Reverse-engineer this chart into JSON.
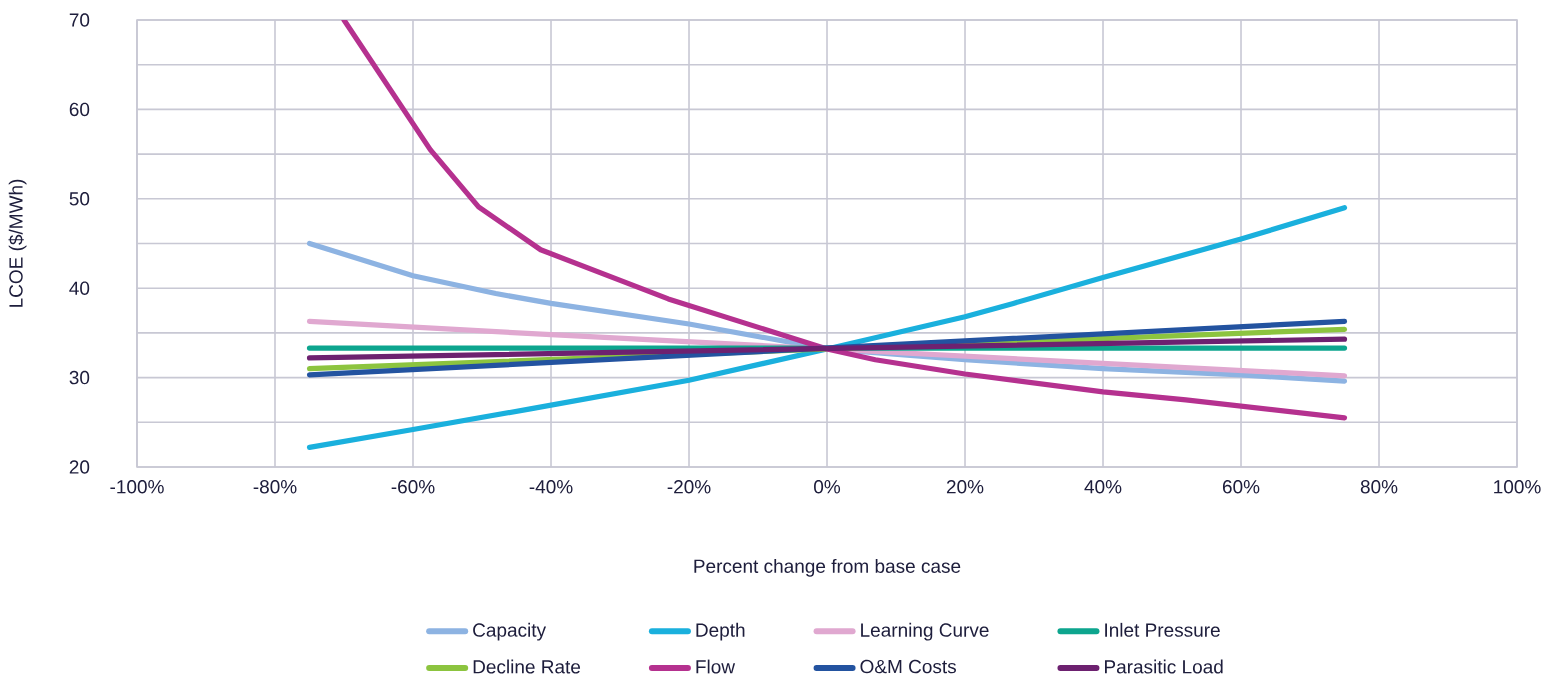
{
  "chart_data": {
    "type": "line",
    "xlabel": "Percent change from base case",
    "ylabel": "LCOE ($/MWh)",
    "xlim": [
      -100,
      100
    ],
    "ylim": [
      20,
      70
    ],
    "xticks": [
      {
        "value": -100,
        "label": "-100%"
      },
      {
        "value": -80,
        "label": "-80%"
      },
      {
        "value": -60,
        "label": "-60%"
      },
      {
        "value": -40,
        "label": "-40%"
      },
      {
        "value": -20,
        "label": "-20%"
      },
      {
        "value": 0,
        "label": "0%"
      },
      {
        "value": 20,
        "label": "20%"
      },
      {
        "value": 40,
        "label": "40%"
      },
      {
        "value": 60,
        "label": "60%"
      },
      {
        "value": 80,
        "label": "80%"
      },
      {
        "value": 100,
        "label": "100%"
      }
    ],
    "yticks": [
      20,
      {
        "value": 25,
        "label": null
      },
      30,
      {
        "value": 35,
        "label": null
      },
      40,
      {
        "value": 45,
        "label": null
      },
      50,
      {
        "value": 55,
        "label": null
      },
      60,
      {
        "value": 65,
        "label": null
      },
      70
    ],
    "grid": true,
    "legend": "bottom",
    "series": [
      {
        "name": "Capacity",
        "color": "#8db3e2",
        "x": [
          -75,
          -60,
          -48,
          -40,
          -20,
          0,
          20,
          40,
          60,
          75
        ],
        "values": [
          45.0,
          41.4,
          39.4,
          38.3,
          36.0,
          33.2,
          32.0,
          31.0,
          30.3,
          29.6
        ]
      },
      {
        "name": "Depth",
        "color": "#1ab0dd",
        "x": [
          -75,
          -60,
          -43,
          -20,
          0,
          20,
          27,
          40,
          60,
          75
        ],
        "values": [
          22.2,
          24.2,
          26.5,
          29.7,
          33.2,
          36.8,
          38.3,
          41.2,
          45.5,
          49.0
        ]
      },
      {
        "name": "Learning Curve",
        "color": "#e0a8d0",
        "x": [
          -75,
          -40,
          0,
          75
        ],
        "values": [
          36.3,
          34.8,
          33.2,
          30.2
        ]
      },
      {
        "name": "Inlet Pressure",
        "color": "#0da58e",
        "x": [
          -75,
          75
        ],
        "values": [
          33.3,
          33.3
        ]
      },
      {
        "name": "Decline Rate",
        "color": "#8cc43f",
        "x": [
          -75,
          75
        ],
        "values": [
          31.0,
          35.4
        ]
      },
      {
        "name": "Flow",
        "color": "#b5318f",
        "x": [
          -70,
          -57.5,
          -50.5,
          -41.5,
          -23,
          0,
          7,
          20,
          40,
          52,
          75
        ],
        "values": [
          70.0,
          55.5,
          49.1,
          44.3,
          38.8,
          33.2,
          32.0,
          30.4,
          28.4,
          27.5,
          25.5
        ]
      },
      {
        "name": "O&M Costs",
        "color": "#2353a0",
        "x": [
          -75,
          75
        ],
        "values": [
          30.3,
          36.3
        ]
      },
      {
        "name": "Parasitic Load",
        "color": "#6d2170",
        "x": [
          -75,
          75
        ],
        "values": [
          32.2,
          34.3
        ]
      }
    ]
  }
}
